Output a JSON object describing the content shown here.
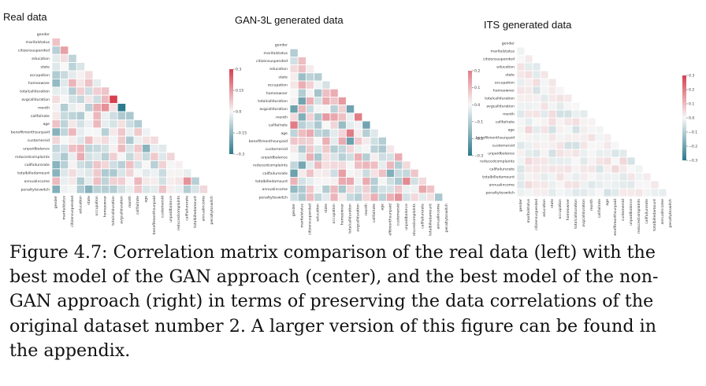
{
  "figure": {
    "label": "Figure 4.7:",
    "caption": "Correlation matrix comparison of the real data (left) with the best model of the GAN approach (center), and the best model of the non-GAN approach (right) in terms of preserving the data correlations of the original dataset number 2. A larger version of this figure can be found in the appendix."
  },
  "colors": {
    "positive": "#d6404e",
    "negative": "#2c7a8c",
    "neutral": "#f7f7f7",
    "grid": "#ffffff"
  },
  "chart_data": [
    {
      "type": "heatmap",
      "title": "Real data",
      "variables": [
        "gender",
        "maritalstatus",
        "citizensuspended",
        "education",
        "state",
        "occupation",
        "homeowner",
        "totalcallduration",
        "avgcallduration",
        "month",
        "callfailrate",
        "age",
        "benefitmonthsunpaid",
        "customersid",
        "unpaidbalance",
        "reducedcomplaints",
        "callfailurerate",
        "totalbilledamount",
        "annualincome",
        "penaltytoswitch"
      ],
      "colorbar_ticks": [
        0.3,
        0.15,
        0.0,
        -0.15,
        -0.3
      ],
      "range": [
        -0.3,
        0.3
      ],
      "strong_cells": [
        {
          "row": "month",
          "col": "avgcallduration",
          "value": -0.3
        },
        {
          "row": "avgcallduration",
          "col": "totalcallduration",
          "value": 0.3
        }
      ]
    },
    {
      "type": "heatmap",
      "title": "GAN-3L generated data",
      "variables": [
        "gender",
        "maritalstatus",
        "citizensuspended",
        "education",
        "state",
        "occupation",
        "homeowner",
        "totalcallduration",
        "avgcallduration",
        "month",
        "callfailrate",
        "age",
        "benefitmonthsunpaid",
        "customersid",
        "unpaidbalance",
        "reducedcomplaints",
        "callfailurerate",
        "totalbilledamount",
        "annualincome",
        "penaltytoswitch"
      ],
      "colorbar_ticks": [
        0.2,
        0.1,
        0.0,
        -0.1,
        -0.2,
        -0.3
      ],
      "range": [
        -0.3,
        0.2
      ],
      "strong_cells": [
        {
          "row": "month",
          "col": "avgcallduration",
          "value": 0.2
        },
        {
          "row": "callfailrate",
          "col": "gender",
          "value": 0.2
        }
      ]
    },
    {
      "type": "heatmap",
      "title": "ITS generated data",
      "variables": [
        "gender",
        "maritalstatus",
        "citizensuspended",
        "education",
        "state",
        "occupation",
        "homeowner",
        "totalcallduration",
        "avgcallduration",
        "month",
        "callfailrate",
        "age",
        "benefitmonthsunpaid",
        "customersid",
        "unpaidbalance",
        "reducedcomplaints",
        "callfailurerate",
        "totalbilledamount",
        "annualincome",
        "penaltytoswitch"
      ],
      "colorbar_ticks": [
        0.3,
        0.2,
        0.1,
        0.0,
        -0.1,
        -0.2,
        -0.3
      ],
      "range": [
        -0.3,
        0.3
      ],
      "strong_cells": []
    }
  ]
}
